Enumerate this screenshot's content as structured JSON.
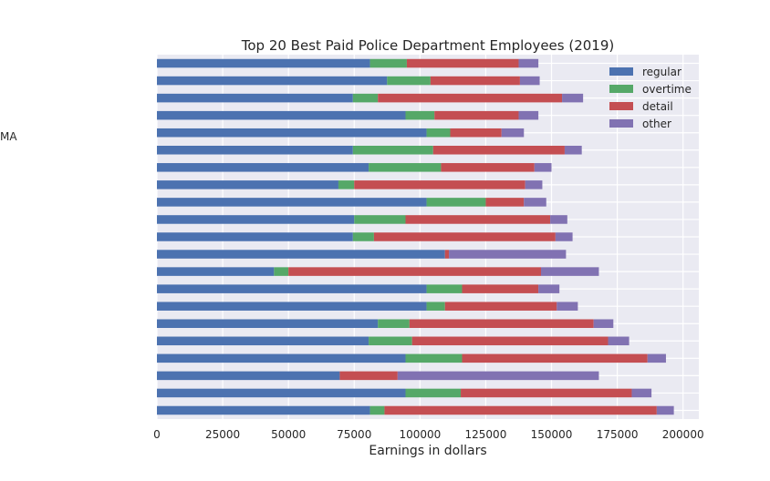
{
  "side_label": "MA",
  "chart_data": {
    "type": "bar",
    "orientation": "horizontal",
    "stacked": true,
    "title": "Top 20 Best Paid Police Department Employees (2019)",
    "xlabel": "Earnings in dollars",
    "ylabel": "",
    "xlim": [
      0,
      206000
    ],
    "x_ticks": [
      0,
      25000,
      50000,
      75000,
      100000,
      125000,
      150000,
      175000,
      200000
    ],
    "x_tick_labels": [
      "0",
      "25000",
      "50000",
      "75000",
      "100000",
      "125000",
      "150000",
      "175000",
      "200000"
    ],
    "grid": true,
    "legend_position": "top-right",
    "series": [
      {
        "name": "regular",
        "color": "#4c72b0",
        "values": [
          81000,
          87500,
          74500,
          94500,
          102500,
          74500,
          80500,
          69000,
          102500,
          75000,
          74500,
          109500,
          44500,
          102500,
          102500,
          84000,
          80500,
          94500,
          69500,
          94500,
          81000
        ]
      },
      {
        "name": "overtime",
        "color": "#55a868",
        "values": [
          14000,
          16500,
          9500,
          11000,
          9000,
          30500,
          27500,
          6000,
          22500,
          19500,
          8000,
          0,
          5500,
          13500,
          7000,
          12000,
          16500,
          21500,
          0,
          21000,
          5500
        ]
      },
      {
        "name": "detail",
        "color": "#c44e52",
        "values": [
          42500,
          34000,
          70000,
          32000,
          19500,
          50000,
          35500,
          65000,
          14500,
          55000,
          69000,
          1500,
          96000,
          29000,
          42500,
          70000,
          74500,
          70500,
          22000,
          65000,
          103500
        ]
      },
      {
        "name": "other",
        "color": "#8172b2",
        "values": [
          7500,
          7500,
          8000,
          7500,
          8500,
          6500,
          6500,
          6500,
          8500,
          6500,
          6500,
          44500,
          22000,
          8000,
          8000,
          7500,
          8000,
          7000,
          76500,
          7500,
          6500
        ]
      }
    ]
  }
}
